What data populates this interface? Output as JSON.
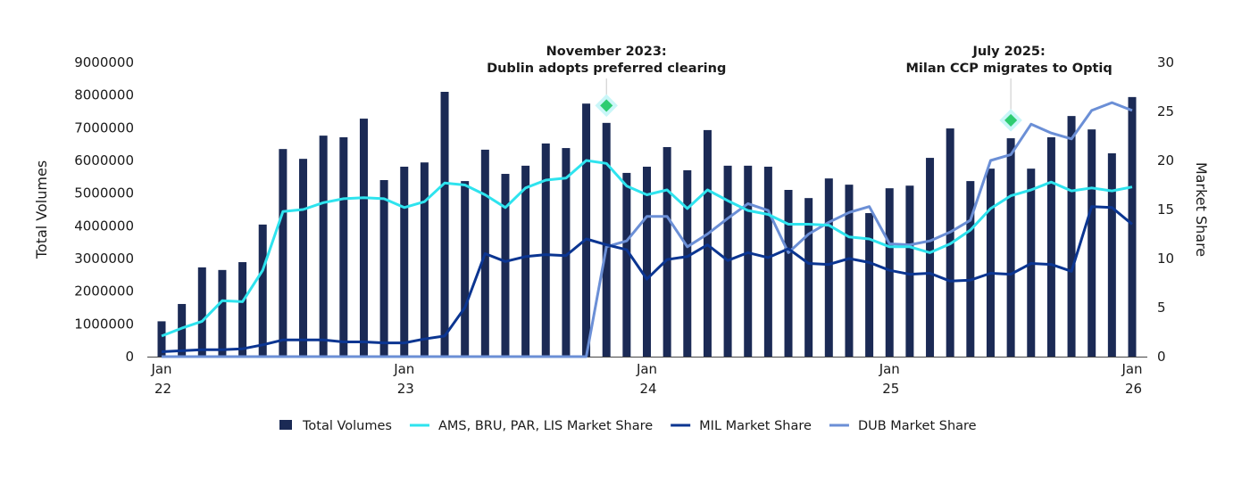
{
  "chart_data": {
    "type": "bar+line",
    "x_ticks": [
      [
        "Jan",
        "22"
      ],
      [
        "Jan",
        "23"
      ],
      [
        "Jan",
        "24"
      ],
      [
        "Jan",
        "25"
      ],
      [
        "Jan",
        "26"
      ]
    ],
    "x_start": "2022-01",
    "x_end": "2026-01",
    "ylabel_left": "Total Volumes",
    "ylabel_right": "Market Share",
    "ylim_left": [
      0,
      9000000
    ],
    "ylim_right": [
      0,
      30
    ],
    "yticks_left": [
      "0",
      "1000000",
      "2000000",
      "3000000",
      "4000000",
      "5000000",
      "6000000",
      "7000000",
      "8000000",
      "9000000"
    ],
    "yticks_right": [
      "0",
      "5",
      "10",
      "15",
      "20",
      "25",
      "30"
    ],
    "grid": false,
    "legend_placement": "bottom",
    "series": [
      {
        "name": "Total Volumes",
        "type": "bar",
        "axis": "left",
        "color": "#1b2a55",
        "values": [
          1080000,
          1610000,
          2730000,
          2650000,
          2890000,
          4040000,
          6350000,
          6050000,
          6760000,
          6710000,
          7280000,
          5400000,
          5810000,
          5940000,
          8100000,
          5370000,
          6330000,
          5590000,
          5840000,
          6520000,
          6380000,
          7740000,
          7150000,
          5620000,
          5810000,
          6410000,
          5700000,
          6930000,
          5840000,
          5840000,
          5810000,
          5100000,
          4850000,
          5450000,
          5260000,
          4390000,
          5150000,
          5230000,
          6080000,
          6980000,
          5370000,
          5750000,
          6680000,
          5750000,
          6710000,
          7360000,
          6950000,
          6220000,
          7940000
        ]
      },
      {
        "name": "AMS, BRU, PAR, LIS Market Share",
        "type": "line",
        "axis": "right",
        "color": "#2ee3ee",
        "values": [
          2.1,
          2.9,
          3.6,
          5.7,
          5.6,
          8.8,
          14.8,
          15.0,
          15.7,
          16.1,
          16.2,
          16.1,
          15.2,
          15.8,
          17.7,
          17.5,
          16.5,
          15.2,
          17.2,
          18.0,
          18.2,
          20.0,
          19.7,
          17.4,
          16.5,
          17.0,
          15.1,
          17.0,
          15.9,
          14.9,
          14.5,
          13.5,
          13.5,
          13.4,
          12.2,
          12.0,
          11.2,
          11.2,
          10.6,
          11.5,
          12.9,
          15.1,
          16.4,
          17.0,
          17.8,
          16.9,
          17.2,
          16.9,
          17.3
        ]
      },
      {
        "name": "MIL Market Share",
        "type": "line",
        "axis": "right",
        "color": "#0b3591",
        "values": [
          0.5,
          0.6,
          0.7,
          0.7,
          0.8,
          1.2,
          1.7,
          1.7,
          1.7,
          1.5,
          1.5,
          1.4,
          1.4,
          1.8,
          2.1,
          5.0,
          10.5,
          9.7,
          10.2,
          10.4,
          10.3,
          12.0,
          11.4,
          10.9,
          7.9,
          9.9,
          10.2,
          11.4,
          9.8,
          10.6,
          10.1,
          11.0,
          9.5,
          9.4,
          10.0,
          9.6,
          8.8,
          8.4,
          8.5,
          7.7,
          7.8,
          8.5,
          8.4,
          9.5,
          9.4,
          8.7,
          15.3,
          15.2,
          13.5
        ]
      },
      {
        "name": "DUB Market Share",
        "type": "line",
        "axis": "right",
        "color": "#6b8fd6",
        "values": [
          0,
          0,
          0,
          0,
          0,
          0,
          0,
          0,
          0,
          0,
          0,
          0,
          0,
          0,
          0,
          0,
          0,
          0,
          0,
          0,
          0,
          0,
          11.2,
          11.8,
          14.3,
          14.3,
          11.2,
          12.5,
          14.1,
          15.6,
          14.9,
          10.6,
          12.5,
          13.7,
          14.7,
          15.3,
          11.5,
          11.4,
          11.8,
          12.7,
          13.9,
          20.0,
          20.6,
          23.7,
          22.8,
          22.2,
          25.1,
          25.9,
          25.1
        ]
      }
    ],
    "annotations": [
      {
        "date": "2023-11",
        "lines": [
          "November 2023:",
          "Dublin adopts preferred clearing"
        ],
        "marker_value": 25.6,
        "marker_color": "#2ecc71"
      },
      {
        "date": "2025-07",
        "lines": [
          "July 2025:",
          "Milan CCP migrates to Optiq"
        ],
        "marker_value": 24.1,
        "marker_color": "#2ecc71"
      }
    ]
  }
}
